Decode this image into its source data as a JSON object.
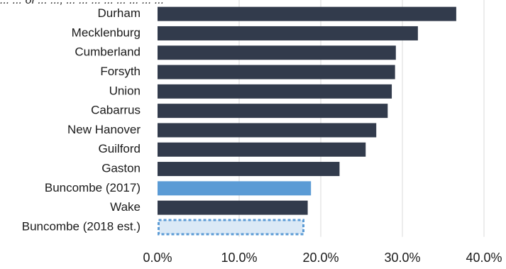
{
  "chart_data": {
    "type": "bar",
    "orientation": "horizontal",
    "title": "... ... of ... ..., ... ... ... ... ... ... ... ...",
    "categories": [
      "Durham",
      "Mecklenburg",
      "Cumberland",
      "Forsyth",
      "Union",
      "Cabarrus",
      "New Hanover",
      "Guilford",
      "Gaston",
      "Buncombe (2017)",
      "Wake",
      "Buncombe (2018 est.)"
    ],
    "values": [
      36.6,
      31.9,
      29.2,
      29.1,
      28.7,
      28.2,
      26.8,
      25.5,
      22.3,
      18.8,
      18.4,
      18.0
    ],
    "bar_styles": [
      "solid",
      "solid",
      "solid",
      "solid",
      "solid",
      "solid",
      "solid",
      "solid",
      "solid",
      "solid",
      "solid",
      "dotted-outline"
    ],
    "bar_colors": [
      "#323b4c",
      "#323b4c",
      "#323b4c",
      "#323b4c",
      "#323b4c",
      "#323b4c",
      "#323b4c",
      "#323b4c",
      "#323b4c",
      "#5b9bd5",
      "#323b4c",
      "#dbe9f6"
    ],
    "outline_color": "#5b9bd5",
    "xlim": [
      0,
      40
    ],
    "x_ticks": [
      0,
      10,
      20,
      30,
      40
    ],
    "x_tick_labels": [
      "0.0%",
      "10.0%",
      "20.0%",
      "30.0%",
      "40.0%"
    ],
    "xlabel": "",
    "ylabel": "",
    "grid": true,
    "legend": "none"
  }
}
